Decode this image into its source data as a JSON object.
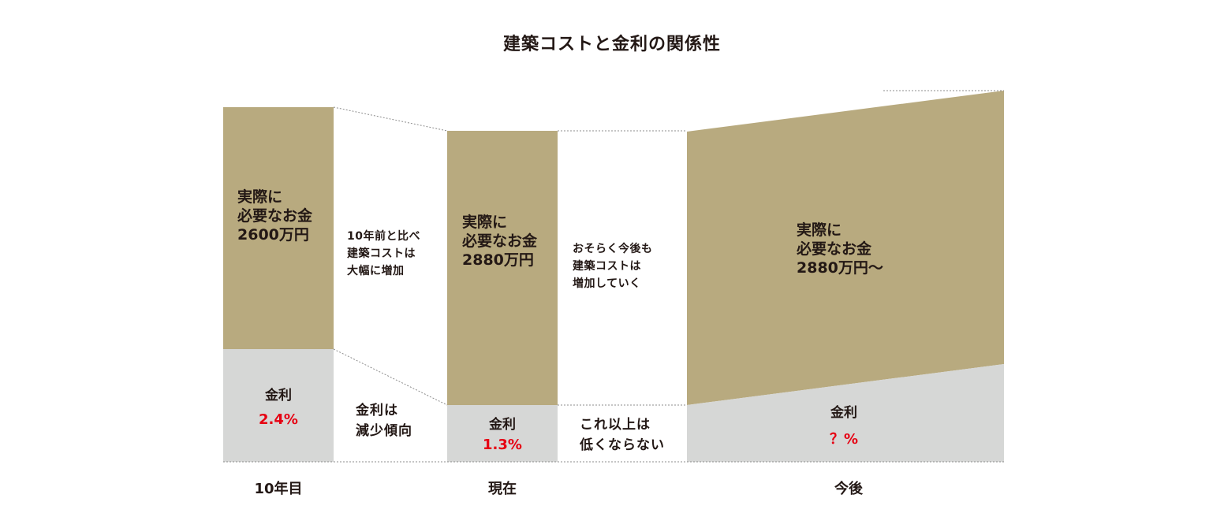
{
  "title": "建築コストと金利の関係性",
  "colors": {
    "cost_fill": "#b8aa7f",
    "rate_fill": "#d6d7d6",
    "rate_value_text": "#e60012",
    "text": "#231815",
    "guide_line": "#8c8c8c"
  },
  "columns": [
    {
      "period": "10年目",
      "cost_label": "実際に\n必要なお金\n2600万円",
      "rate_label": "金利",
      "rate_value": "2.4%"
    },
    {
      "period": "現在",
      "cost_label": "実際に\n必要なお金\n2880万円",
      "rate_label": "金利",
      "rate_value": "1.3%"
    },
    {
      "period": "今後",
      "cost_label": "実際に\n必要なお金\n2880万円〜",
      "rate_label": "金利",
      "rate_value": "？%"
    }
  ],
  "transitions": [
    {
      "cost_note": "10年前と比べ\n建築コストは\n大幅に増加",
      "rate_note": "金利は\n減少傾向"
    },
    {
      "cost_note": "おそらく今後も\n建築コストは\n増加していく",
      "rate_note": "これ以上は\n低くならない"
    }
  ]
}
